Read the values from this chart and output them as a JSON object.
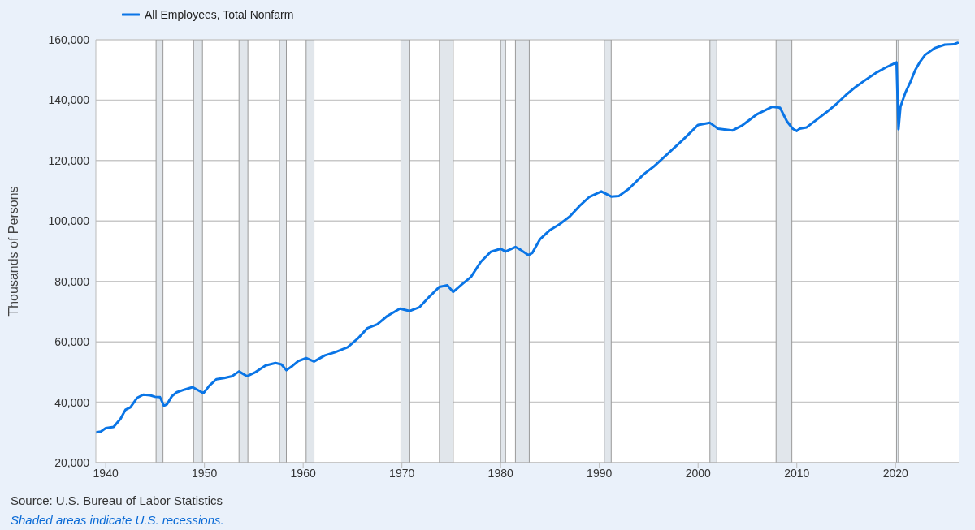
{
  "chart_data": {
    "type": "line",
    "ylabel": "Thousands of Persons",
    "annotations": [
      "Source: U.S. Bureau of Labor Statistics",
      "Shaded areas indicate U.S. recessions."
    ],
    "x": [
      1939.0,
      1939.5,
      1940.0,
      1940.8,
      1941.5,
      1942.0,
      1942.5,
      1943.2,
      1943.8,
      1944.5,
      1945.0,
      1945.5,
      1945.9,
      1946.2,
      1946.7,
      1947.2,
      1948.0,
      1948.8,
      1949.5,
      1949.9,
      1950.5,
      1951.2,
      1952.0,
      1952.8,
      1953.5,
      1954.3,
      1955.2,
      1956.2,
      1957.2,
      1957.8,
      1958.3,
      1958.9,
      1959.5,
      1960.3,
      1961.1,
      1962.2,
      1963.2,
      1964.5,
      1965.5,
      1966.5,
      1967.5,
      1968.5,
      1969.8,
      1970.8,
      1971.8,
      1972.8,
      1973.8,
      1974.6,
      1975.2,
      1976.0,
      1977.0,
      1978.0,
      1979.0,
      1980.0,
      1980.5,
      1981.5,
      1982.0,
      1982.8,
      1983.2,
      1984.0,
      1985.0,
      1986.0,
      1987.0,
      1988.0,
      1989.0,
      1990.2,
      1991.2,
      1992.0,
      1993.0,
      1994.5,
      1995.5,
      1997.0,
      1998.5,
      2000.0,
      2001.2,
      2002.0,
      2003.5,
      2004.5,
      2006.0,
      2007.5,
      2008.3,
      2009.0,
      2009.6,
      2010.0,
      2010.3,
      2011.0,
      2012.0,
      2013.0,
      2014.0,
      2015.0,
      2016.0,
      2017.0,
      2018.0,
      2019.0,
      2020.1,
      2020.3,
      2020.5,
      2021.0,
      2021.5,
      2022.0,
      2022.5,
      2023.0,
      2024.0,
      2025.0,
      2025.9,
      2026.3
    ],
    "series": [
      {
        "name": "All Employees, Total Nonfarm",
        "color": "#0a75e6",
        "values": [
          30000,
          30300,
          31400,
          31800,
          34500,
          37500,
          38300,
          41500,
          42500,
          42300,
          41800,
          41700,
          38800,
          39300,
          42000,
          43300,
          44200,
          45000,
          43700,
          43000,
          45500,
          47600,
          48000,
          48600,
          50200,
          48600,
          50000,
          52200,
          53000,
          52500,
          50600,
          52000,
          53600,
          54600,
          53500,
          55500,
          56500,
          58200,
          61000,
          64500,
          65800,
          68500,
          71000,
          70200,
          71500,
          75000,
          78200,
          78700,
          76500,
          78800,
          81500,
          86500,
          89800,
          90800,
          89900,
          91400,
          90500,
          88700,
          89400,
          94000,
          97000,
          99000,
          101500,
          105000,
          108000,
          109800,
          108100,
          108300,
          110700,
          115500,
          118000,
          122500,
          127000,
          131800,
          132500,
          130600,
          130000,
          131700,
          135400,
          137800,
          137500,
          133000,
          130500,
          129800,
          130600,
          131000,
          133500,
          136000,
          138700,
          141800,
          144500,
          146800,
          149000,
          150800,
          152500,
          130400,
          137800,
          142500,
          146000,
          150000,
          152800,
          155000,
          157300,
          158400,
          158500,
          159000
        ]
      }
    ],
    "bands": [
      {
        "axis": "x",
        "from": 1945.1,
        "to": 1945.8,
        "color": "#e1e6eb"
      },
      {
        "axis": "x",
        "from": 1948.9,
        "to": 1949.8,
        "color": "#e1e6eb"
      },
      {
        "axis": "x",
        "from": 1953.5,
        "to": 1954.4,
        "color": "#e1e6eb"
      },
      {
        "axis": "x",
        "from": 1957.6,
        "to": 1958.3,
        "color": "#e1e6eb"
      },
      {
        "axis": "x",
        "from": 1960.3,
        "to": 1961.1,
        "color": "#e1e6eb"
      },
      {
        "axis": "x",
        "from": 1969.9,
        "to": 1970.8,
        "color": "#e1e6eb"
      },
      {
        "axis": "x",
        "from": 1973.8,
        "to": 1975.2,
        "color": "#e1e6eb"
      },
      {
        "axis": "x",
        "from": 1980.0,
        "to": 1980.5,
        "color": "#e1e6eb"
      },
      {
        "axis": "x",
        "from": 1981.5,
        "to": 1982.9,
        "color": "#e1e6eb"
      },
      {
        "axis": "x",
        "from": 1990.5,
        "to": 1991.2,
        "color": "#e1e6eb"
      },
      {
        "axis": "x",
        "from": 2001.2,
        "to": 2001.9,
        "color": "#e1e6eb"
      },
      {
        "axis": "x",
        "from": 2007.9,
        "to": 2009.5,
        "color": "#e1e6eb"
      },
      {
        "axis": "x",
        "from": 2020.1,
        "to": 2020.3,
        "color": "#e1e6eb"
      }
    ],
    "xlim": [
      1939.0,
      2026.4
    ],
    "xticks": [
      1940,
      1950,
      1960,
      1970,
      1980,
      1990,
      2000,
      2010,
      2020
    ],
    "ylim": [
      20000,
      160000
    ],
    "yticks": [
      {
        "value": 20000,
        "label": "20,000"
      },
      {
        "value": 40000,
        "label": "40,000"
      },
      {
        "value": 60000,
        "label": "60,000"
      },
      {
        "value": 80000,
        "label": "80,000"
      },
      {
        "value": 100000,
        "label": "100,000"
      },
      {
        "value": 120000,
        "label": "120,000"
      },
      {
        "value": 140000,
        "label": "140,000"
      },
      {
        "value": 160000,
        "label": "160,000"
      }
    ],
    "grid": "y",
    "legend": "top left",
    "marker": "none",
    "line_style": "solid"
  }
}
